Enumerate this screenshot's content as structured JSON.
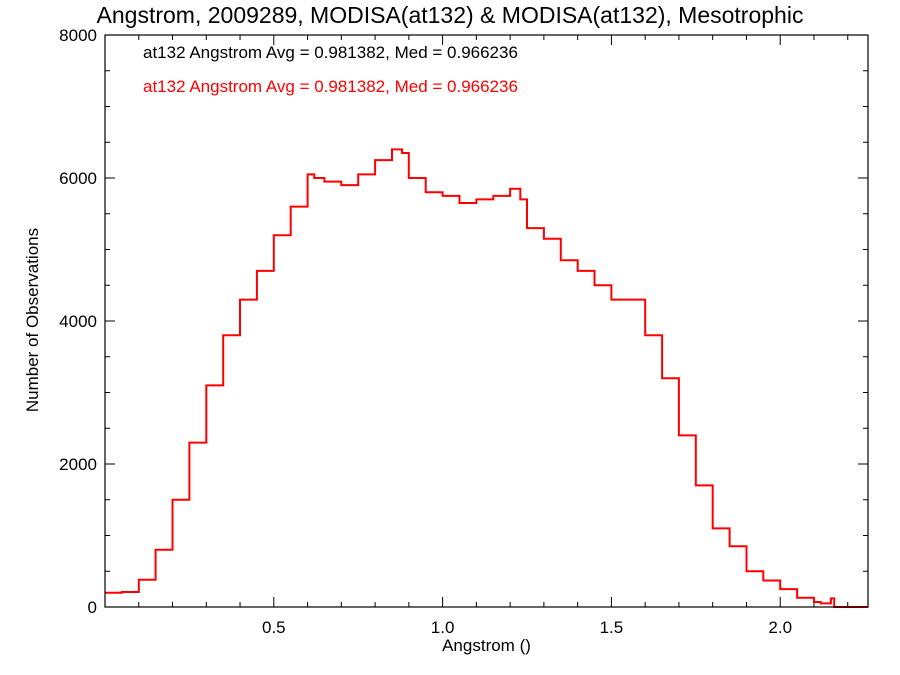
{
  "chart_data": {
    "type": "line",
    "style": "step",
    "title": "Angstrom, 2009289, MODISA(at132) & MODISA(at132), Mesotrophic",
    "xlabel": "Angstrom ()",
    "ylabel": "Number of Observations",
    "xlim": [
      0.0,
      2.26
    ],
    "ylim": [
      0,
      8000
    ],
    "x_ticks": [
      0.5,
      1.0,
      1.5,
      2.0
    ],
    "x_tick_labels": [
      "0.5",
      "1.0",
      "1.5",
      "2.0"
    ],
    "y_ticks": [
      0,
      2000,
      4000,
      6000,
      8000
    ],
    "y_tick_labels": [
      "0",
      "2000",
      "4000",
      "6000",
      "8000"
    ],
    "grid": false,
    "annotations": [
      {
        "text": "at132 Angstrom Avg = 0.981382, Med = 0.966236",
        "color": "#000000"
      },
      {
        "text": "at132 Angstrom Avg = 0.981382, Med = 0.966236",
        "color": "#ff0000"
      }
    ],
    "series": [
      {
        "color": "#ff0000",
        "x": [
          0.0,
          0.05,
          0.1,
          0.15,
          0.2,
          0.25,
          0.3,
          0.35,
          0.4,
          0.45,
          0.5,
          0.55,
          0.6,
          0.62,
          0.65,
          0.7,
          0.75,
          0.8,
          0.85,
          0.88,
          0.9,
          0.95,
          1.0,
          1.05,
          1.1,
          1.15,
          1.2,
          1.23,
          1.25,
          1.3,
          1.35,
          1.4,
          1.45,
          1.5,
          1.55,
          1.6,
          1.65,
          1.7,
          1.75,
          1.8,
          1.85,
          1.9,
          1.95,
          2.0,
          2.05,
          2.1,
          2.12,
          2.15,
          2.16,
          2.2,
          2.26
        ],
        "y": [
          200,
          210,
          380,
          800,
          1500,
          2300,
          3100,
          3800,
          4300,
          4700,
          5200,
          5600,
          6050,
          6000,
          5950,
          5900,
          6050,
          6250,
          6400,
          6350,
          6000,
          5800,
          5750,
          5650,
          5700,
          5750,
          5850,
          5700,
          5300,
          5150,
          4850,
          4700,
          4500,
          4300,
          4300,
          3800,
          3200,
          2400,
          1700,
          1100,
          850,
          500,
          370,
          250,
          130,
          70,
          50,
          120,
          0,
          0,
          0
        ]
      }
    ]
  }
}
